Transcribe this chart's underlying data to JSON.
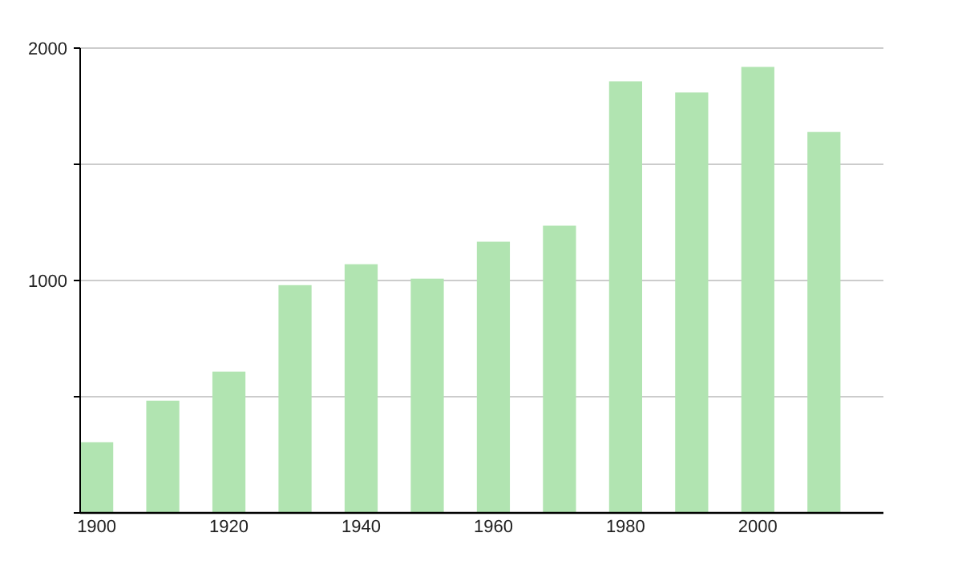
{
  "chart_data": {
    "type": "bar",
    "x": [
      1900,
      1910,
      1920,
      1930,
      1940,
      1950,
      1960,
      1970,
      1980,
      1990,
      2000,
      2010
    ],
    "values": [
      304,
      483,
      608,
      980,
      1070,
      1008,
      1167,
      1236,
      1857,
      1809,
      1919,
      1639
    ],
    "color": "#b1e4b1",
    "xlim": [
      1897.5,
      2019
    ],
    "xticks": [
      1900,
      1920,
      1940,
      1960,
      1980,
      2000
    ],
    "ylim": [
      0,
      2000
    ],
    "yticks": [
      {
        "value": 0,
        "label": null
      },
      {
        "value": 500,
        "label": null
      },
      1000,
      {
        "value": 1500,
        "label": null
      },
      2000
    ],
    "grid": "y"
  }
}
